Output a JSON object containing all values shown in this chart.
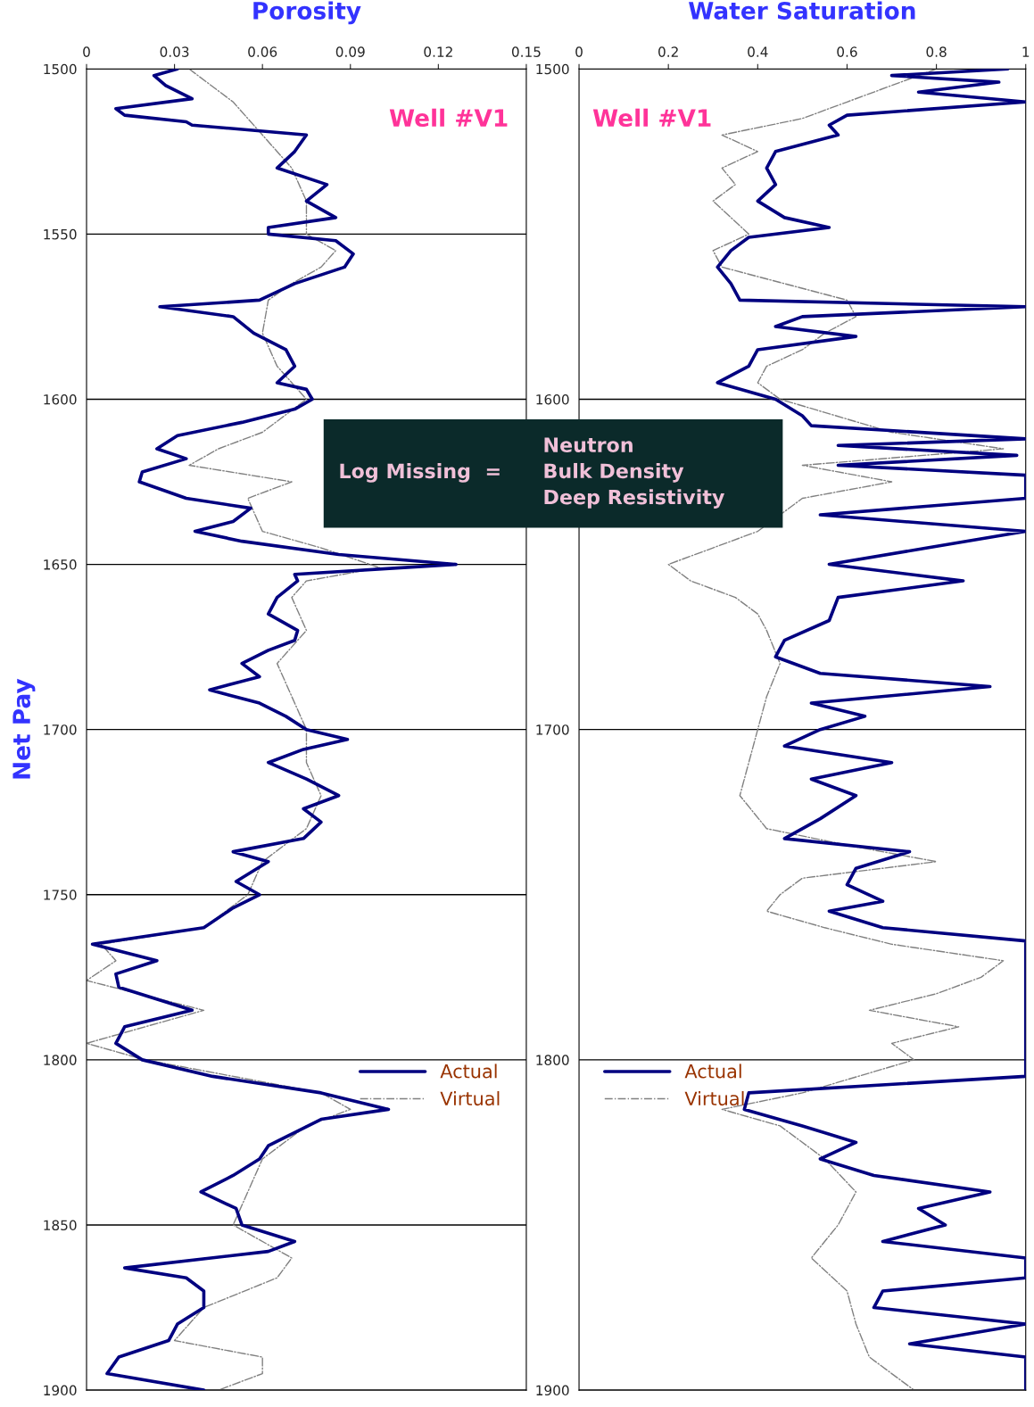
{
  "chart_data": [
    {
      "type": "line",
      "orientation": "horizontal",
      "title": "Porosity",
      "ylabel": "Net Pay",
      "xlim": [
        0,
        0.15
      ],
      "xticks": [
        0,
        0.03,
        0.06,
        0.09,
        0.12,
        0.15
      ],
      "ylim": [
        1900,
        1500
      ],
      "yticks": [
        1500,
        1550,
        1600,
        1650,
        1700,
        1750,
        1800,
        1850,
        1900
      ],
      "grid": "y",
      "legend": "lower right",
      "annotations": [
        "Well #V1",
        "Log Missing  =",
        "Neutron\nBulk Density\nDeep Resistivity"
      ],
      "series": [
        {
          "name": "Actual",
          "color": "#000080",
          "line_style": "solid",
          "x": [
            1500,
            1502,
            1505,
            1509,
            1512,
            1514,
            1516,
            1517,
            1520,
            1525,
            1530,
            1535,
            1540,
            1545,
            1548,
            1550,
            1552,
            1556,
            1560,
            1565,
            1570,
            1572,
            1575,
            1580,
            1585,
            1590,
            1595,
            1597,
            1600,
            1603,
            1607,
            1611,
            1615,
            1618,
            1622,
            1625,
            1630,
            1633,
            1637,
            1640,
            1643,
            1647,
            1650,
            1653,
            1655,
            1660,
            1665,
            1670,
            1673,
            1676,
            1680,
            1684,
            1688,
            1692,
            1696,
            1700,
            1703,
            1706,
            1710,
            1715,
            1720,
            1724,
            1728,
            1733,
            1737,
            1740,
            1746,
            1750,
            1754,
            1760,
            1765,
            1770,
            1774,
            1778,
            1785,
            1790,
            1795,
            1800,
            1805,
            1810,
            1815,
            1818,
            1822,
            1826,
            1830,
            1835,
            1840,
            1845,
            1850,
            1855,
            1858,
            1863,
            1866,
            1870,
            1875,
            1880,
            1885,
            1890,
            1895,
            1900
          ],
          "values": [
            0.031,
            0.023,
            0.027,
            0.036,
            0.01,
            0.013,
            0.034,
            0.036,
            0.075,
            0.071,
            0.065,
            0.082,
            0.075,
            0.085,
            0.062,
            0.062,
            0.085,
            0.091,
            0.088,
            0.071,
            0.059,
            0.025,
            0.05,
            0.057,
            0.068,
            0.071,
            0.065,
            0.075,
            0.077,
            0.071,
            0.053,
            0.031,
            0.024,
            0.034,
            0.019,
            0.018,
            0.034,
            0.056,
            0.05,
            0.037,
            0.053,
            0.086,
            0.126,
            0.071,
            0.072,
            0.065,
            0.062,
            0.072,
            0.071,
            0.062,
            0.053,
            0.059,
            0.042,
            0.059,
            0.068,
            0.075,
            0.089,
            0.074,
            0.062,
            0.075,
            0.086,
            0.074,
            0.08,
            0.074,
            0.05,
            0.062,
            0.051,
            0.059,
            0.05,
            0.04,
            0.002,
            0.024,
            0.01,
            0.011,
            0.036,
            0.013,
            0.01,
            0.019,
            0.043,
            0.08,
            0.103,
            0.08,
            0.071,
            0.062,
            0.059,
            0.05,
            0.039,
            0.051,
            0.053,
            0.071,
            0.062,
            0.013,
            0.034,
            0.04,
            0.04,
            0.031,
            0.028,
            0.011,
            0.007,
            0.04
          ]
        },
        {
          "name": "Virtual",
          "color": "#808080",
          "line_style": "dashdot",
          "x": [
            1500,
            1510,
            1515,
            1520,
            1530,
            1540,
            1550,
            1555,
            1560,
            1565,
            1570,
            1580,
            1590,
            1600,
            1610,
            1615,
            1620,
            1625,
            1630,
            1640,
            1645,
            1651,
            1655,
            1660,
            1670,
            1680,
            1690,
            1700,
            1710,
            1720,
            1730,
            1740,
            1750,
            1760,
            1765,
            1770,
            1776,
            1785,
            1795,
            1800,
            1810,
            1815,
            1820,
            1830,
            1840,
            1850,
            1860,
            1866,
            1875,
            1885,
            1890,
            1895,
            1900
          ],
          "values": [
            0.035,
            0.05,
            0.055,
            0.06,
            0.07,
            0.075,
            0.075,
            0.085,
            0.08,
            0.07,
            0.062,
            0.06,
            0.065,
            0.075,
            0.06,
            0.045,
            0.035,
            0.07,
            0.055,
            0.06,
            0.08,
            0.1,
            0.075,
            0.07,
            0.075,
            0.065,
            0.07,
            0.075,
            0.075,
            0.08,
            0.075,
            0.06,
            0.055,
            0.04,
            0.005,
            0.01,
            0.0,
            0.04,
            0.0,
            0.02,
            0.08,
            0.09,
            0.075,
            0.06,
            0.055,
            0.05,
            0.07,
            0.065,
            0.04,
            0.03,
            0.06,
            0.06,
            0.045
          ]
        }
      ]
    },
    {
      "type": "line",
      "orientation": "horizontal",
      "title": "Water Saturation",
      "xlim": [
        0,
        1
      ],
      "xticks": [
        0,
        0.2,
        0.4,
        0.6,
        0.8,
        1
      ],
      "ylim": [
        1900,
        1500
      ],
      "yticks": [
        1500,
        1600,
        1700,
        1800,
        1900
      ],
      "grid": "y",
      "legend": "lower left",
      "annotations": [
        "Well #V1"
      ],
      "series": [
        {
          "name": "Actual",
          "color": "#000080",
          "line_style": "solid",
          "x": [
            1500,
            1502,
            1504,
            1507,
            1510,
            1514,
            1517,
            1520,
            1525,
            1530,
            1535,
            1540,
            1545,
            1548,
            1551,
            1555,
            1560,
            1565,
            1570,
            1572,
            1575,
            1578,
            1581,
            1585,
            1590,
            1595,
            1600,
            1605,
            1608,
            1612,
            1614,
            1617,
            1620,
            1623,
            1630,
            1635,
            1640,
            1645,
            1650,
            1655,
            1660,
            1667,
            1673,
            1678,
            1683,
            1687,
            1692,
            1696,
            1700,
            1705,
            1710,
            1715,
            1720,
            1727,
            1733,
            1737,
            1742,
            1747,
            1752,
            1755,
            1760,
            1764,
            1780,
            1800,
            1805,
            1810,
            1815,
            1820,
            1825,
            1830,
            1835,
            1840,
            1845,
            1850,
            1855,
            1860,
            1866,
            1870,
            1875,
            1880,
            1886,
            1890,
            1900
          ],
          "values": [
            0.96,
            0.7,
            0.94,
            0.76,
            1.0,
            0.6,
            0.56,
            0.58,
            0.44,
            0.42,
            0.44,
            0.4,
            0.46,
            0.56,
            0.38,
            0.34,
            0.31,
            0.34,
            0.36,
            1.0,
            0.5,
            0.44,
            0.62,
            0.4,
            0.38,
            0.31,
            0.44,
            0.5,
            0.52,
            1.0,
            0.58,
            0.98,
            0.58,
            1.0,
            1.0,
            0.54,
            1.0,
            0.78,
            0.56,
            0.86,
            0.58,
            0.56,
            0.46,
            0.44,
            0.54,
            0.92,
            0.52,
            0.64,
            0.54,
            0.46,
            0.7,
            0.52,
            0.62,
            0.54,
            0.46,
            0.74,
            0.62,
            0.6,
            0.68,
            0.56,
            0.68,
            1.0,
            1.0,
            1.0,
            1.0,
            0.38,
            0.37,
            0.5,
            0.62,
            0.54,
            0.66,
            0.92,
            0.76,
            0.82,
            0.68,
            1.0,
            1.0,
            0.68,
            0.66,
            1.0,
            0.74,
            1.0,
            1.0
          ]
        },
        {
          "name": "Virtual",
          "color": "#808080",
          "line_style": "dashdot",
          "x": [
            1500,
            1505,
            1510,
            1515,
            1520,
            1525,
            1530,
            1535,
            1540,
            1550,
            1555,
            1560,
            1570,
            1575,
            1580,
            1585,
            1590,
            1595,
            1600,
            1610,
            1615,
            1620,
            1625,
            1630,
            1640,
            1645,
            1650,
            1655,
            1660,
            1665,
            1670,
            1680,
            1690,
            1700,
            1710,
            1720,
            1730,
            1735,
            1740,
            1745,
            1750,
            1755,
            1760,
            1765,
            1770,
            1775,
            1780,
            1785,
            1790,
            1795,
            1800,
            1810,
            1815,
            1820,
            1830,
            1840,
            1850,
            1860,
            1870,
            1880,
            1890,
            1900
          ],
          "values": [
            0.8,
            0.7,
            0.6,
            0.5,
            0.32,
            0.4,
            0.32,
            0.35,
            0.3,
            0.38,
            0.3,
            0.32,
            0.6,
            0.62,
            0.55,
            0.5,
            0.42,
            0.4,
            0.45,
            0.7,
            0.95,
            0.5,
            0.7,
            0.5,
            0.4,
            0.3,
            0.2,
            0.25,
            0.35,
            0.4,
            0.42,
            0.45,
            0.42,
            0.4,
            0.38,
            0.36,
            0.42,
            0.6,
            0.8,
            0.5,
            0.45,
            0.42,
            0.55,
            0.7,
            0.95,
            0.9,
            0.8,
            0.65,
            0.85,
            0.7,
            0.75,
            0.5,
            0.32,
            0.45,
            0.55,
            0.62,
            0.58,
            0.52,
            0.6,
            0.62,
            0.65,
            0.75
          ]
        }
      ]
    }
  ]
}
